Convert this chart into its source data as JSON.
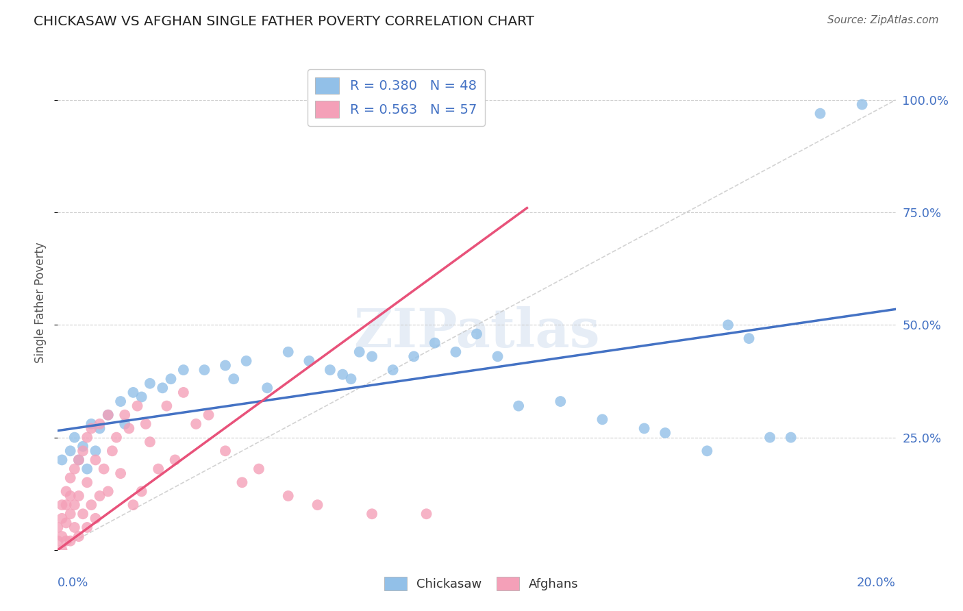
{
  "title": "CHICKASAW VS AFGHAN SINGLE FATHER POVERTY CORRELATION CHART",
  "source": "Source: ZipAtlas.com",
  "ylabel": "Single Father Poverty",
  "watermark": "ZIPatlas",
  "R_chickasaw": 0.38,
  "N_chickasaw": 48,
  "R_afghans": 0.563,
  "N_afghans": 57,
  "xlim": [
    0.0,
    0.2
  ],
  "ylim": [
    0.0,
    1.1
  ],
  "color_chickasaw": "#92C0E8",
  "color_afghans": "#F4A0B8",
  "trend_color_chickasaw": "#4472C4",
  "trend_color_afghans": "#E8527A",
  "diagonal_color": "#C8C8C8",
  "grid_color": "#CCCCCC",
  "title_color": "#222222",
  "axis_label_color": "#4472C4",
  "background_color": "#FFFFFF",
  "chickasaw_trend_x0": 0.0,
  "chickasaw_trend_y0": 0.265,
  "chickasaw_trend_x1": 0.2,
  "chickasaw_trend_y1": 0.535,
  "afghan_trend_x0": 0.0,
  "afghan_trend_y0": 0.0,
  "afghan_trend_x1": 0.112,
  "afghan_trend_y1": 0.76,
  "chickasaw_x": [
    0.001,
    0.003,
    0.004,
    0.005,
    0.006,
    0.007,
    0.008,
    0.009,
    0.01,
    0.012,
    0.015,
    0.016,
    0.018,
    0.02,
    0.022,
    0.025,
    0.027,
    0.03,
    0.035,
    0.04,
    0.042,
    0.045,
    0.05,
    0.055,
    0.06,
    0.065,
    0.068,
    0.07,
    0.072,
    0.075,
    0.08,
    0.085,
    0.09,
    0.095,
    0.1,
    0.105,
    0.11,
    0.12,
    0.13,
    0.14,
    0.145,
    0.155,
    0.16,
    0.165,
    0.17,
    0.175,
    0.182,
    0.192
  ],
  "chickasaw_y": [
    0.2,
    0.22,
    0.25,
    0.2,
    0.23,
    0.18,
    0.28,
    0.22,
    0.27,
    0.3,
    0.33,
    0.28,
    0.35,
    0.34,
    0.37,
    0.36,
    0.38,
    0.4,
    0.4,
    0.41,
    0.38,
    0.42,
    0.36,
    0.44,
    0.42,
    0.4,
    0.39,
    0.38,
    0.44,
    0.43,
    0.4,
    0.43,
    0.46,
    0.44,
    0.48,
    0.43,
    0.32,
    0.33,
    0.29,
    0.27,
    0.26,
    0.22,
    0.5,
    0.47,
    0.25,
    0.25,
    0.97,
    0.99
  ],
  "afghans_x": [
    0.0,
    0.0,
    0.001,
    0.001,
    0.001,
    0.001,
    0.002,
    0.002,
    0.002,
    0.002,
    0.003,
    0.003,
    0.003,
    0.003,
    0.004,
    0.004,
    0.004,
    0.005,
    0.005,
    0.005,
    0.006,
    0.006,
    0.007,
    0.007,
    0.007,
    0.008,
    0.008,
    0.009,
    0.009,
    0.01,
    0.01,
    0.011,
    0.012,
    0.012,
    0.013,
    0.014,
    0.015,
    0.016,
    0.017,
    0.018,
    0.019,
    0.02,
    0.021,
    0.022,
    0.024,
    0.026,
    0.028,
    0.03,
    0.033,
    0.036,
    0.04,
    0.044,
    0.048,
    0.055,
    0.062,
    0.075,
    0.088
  ],
  "afghans_y": [
    0.02,
    0.05,
    0.0,
    0.03,
    0.07,
    0.1,
    0.02,
    0.06,
    0.1,
    0.13,
    0.02,
    0.08,
    0.12,
    0.16,
    0.05,
    0.1,
    0.18,
    0.03,
    0.12,
    0.2,
    0.08,
    0.22,
    0.05,
    0.15,
    0.25,
    0.1,
    0.27,
    0.07,
    0.2,
    0.12,
    0.28,
    0.18,
    0.13,
    0.3,
    0.22,
    0.25,
    0.17,
    0.3,
    0.27,
    0.1,
    0.32,
    0.13,
    0.28,
    0.24,
    0.18,
    0.32,
    0.2,
    0.35,
    0.28,
    0.3,
    0.22,
    0.15,
    0.18,
    0.12,
    0.1,
    0.08,
    0.08
  ]
}
